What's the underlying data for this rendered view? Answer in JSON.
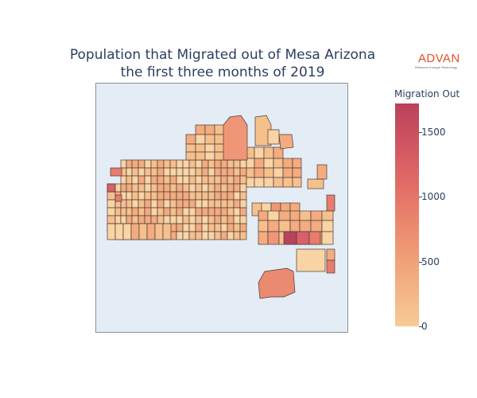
{
  "title": {
    "line1": "Population that Migrated out of Mesa Arizona",
    "line2": "the first three months of 2019"
  },
  "logo": {
    "word": "ADVAN",
    "tagline": "Research through Technology",
    "color": "#e0522c"
  },
  "colorbar": {
    "title": "Migration Out",
    "range": [
      0,
      1720
    ],
    "ticks": [
      {
        "value": 0,
        "label": "0"
      },
      {
        "value": 500,
        "label": "500"
      },
      {
        "value": 1000,
        "label": "1000"
      },
      {
        "value": 1500,
        "label": "1500"
      }
    ],
    "colorscale": [
      "#f7cb96",
      "#f2a97c",
      "#eb8a6e",
      "#e06c66",
      "#d15560",
      "#b9415a"
    ]
  },
  "map": {
    "background": "#e4ecf5",
    "region": "Mesa, Arizona",
    "metric": "Population that migrated out",
    "period": "Q1 2019"
  }
}
